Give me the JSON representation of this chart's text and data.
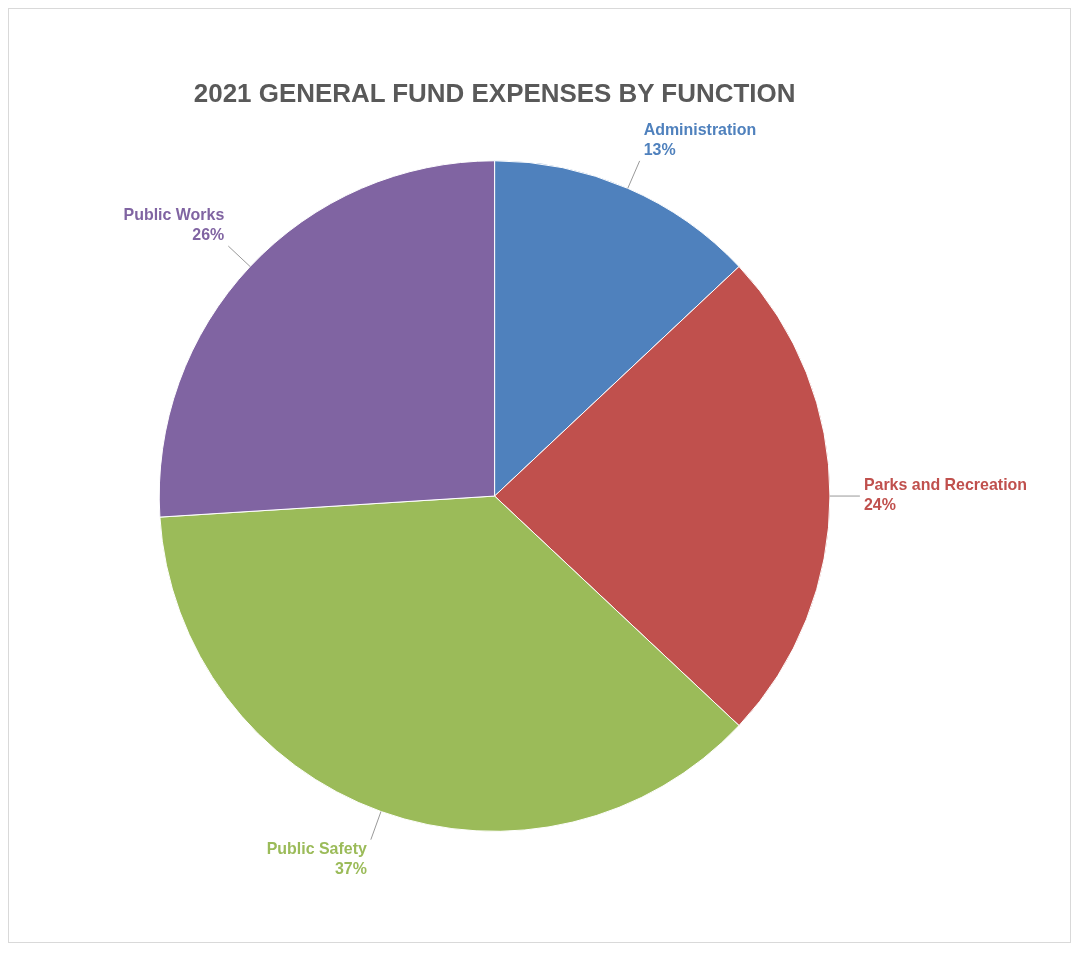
{
  "chart_data": {
    "type": "pie",
    "title": "2021 GENERAL FUND EXPENSES BY FUNCTION",
    "categories": [
      "Administration",
      "Parks and Recreation",
      "Public Safety",
      "Public Works"
    ],
    "values": [
      13,
      24,
      37,
      26
    ],
    "colors": [
      "#4f81bd",
      "#c0504d",
      "#9bbb59",
      "#8064a2"
    ],
    "value_labels": [
      "13%",
      "24%",
      "37%",
      "26%"
    ],
    "legend": false
  }
}
